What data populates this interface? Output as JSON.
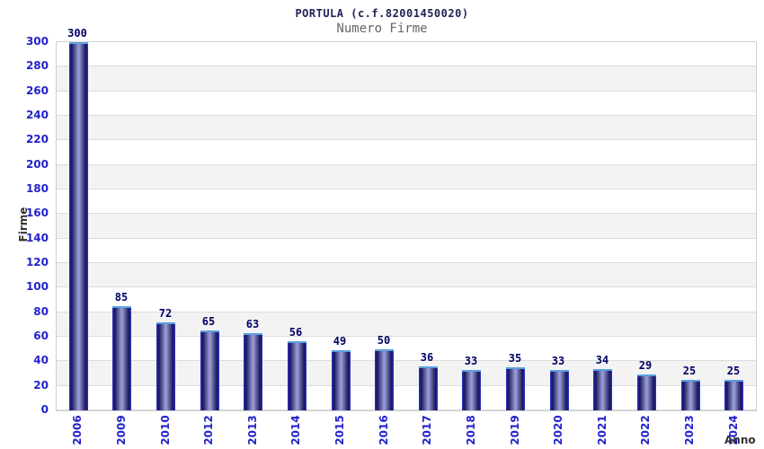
{
  "chart_data": {
    "type": "bar",
    "title": "PORTULA (c.f.82001450020)",
    "subtitle": "Numero Firme",
    "xlabel": "Anno",
    "ylabel": "Firme",
    "categories": [
      "2006",
      "2009",
      "2010",
      "2012",
      "2013",
      "2014",
      "2015",
      "2016",
      "2017",
      "2018",
      "2019",
      "2020",
      "2021",
      "2022",
      "2023",
      "2024"
    ],
    "values": [
      300,
      85,
      72,
      65,
      63,
      56,
      49,
      50,
      36,
      33,
      35,
      33,
      34,
      29,
      25,
      25
    ],
    "ylim": [
      0,
      300
    ],
    "ytick_step": 20,
    "grid": "horizontal-bands-alternating",
    "legend": null,
    "bar_value_labels_shown": true,
    "colors": {
      "title": "#222255",
      "subtitle": "#666666",
      "tick_label": "#2222cc",
      "value_label": "#000066",
      "axis_title": "#333333",
      "band_light": "#ffffff",
      "band_dark": "#f3f3f3",
      "grid_line": "#dcdcdc",
      "plot_border": "#d0d0d0",
      "bar_edge": "#3333cc",
      "bar_dark": "#15155c",
      "bar_mid": "#9a9ad2",
      "bar_cap": "#5a9fe0"
    }
  }
}
